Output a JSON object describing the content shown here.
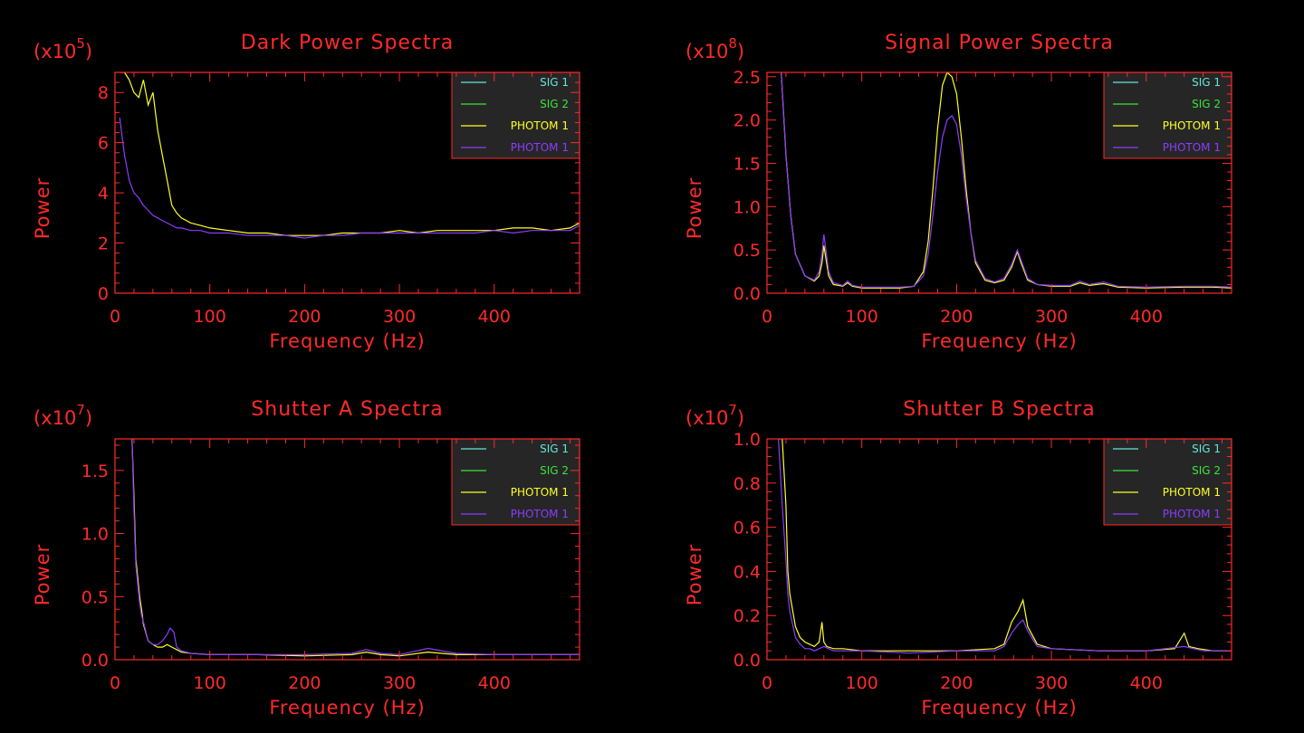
{
  "colors": {
    "axis": "#ff2a2a",
    "legend_bg": "#262626",
    "sig1": "#66e6d8",
    "sig2": "#39e639",
    "photom1_yellow": "#ffff26",
    "photom1_purple": "#8c3cff"
  },
  "chart_data": [
    {
      "type": "line",
      "title": "Dark Power Spectra",
      "scale_prefix": "(x10",
      "scale_exp": "5",
      "scale_suffix": ")",
      "xlabel": "Frequency (Hz)",
      "ylabel": "Power",
      "xlim": [
        0,
        490
      ],
      "ylim": [
        0,
        8.8
      ],
      "xticks": [
        0,
        100,
        200,
        300,
        400
      ],
      "xtick_labels": [
        "0",
        "100",
        "200",
        "300",
        "400"
      ],
      "yticks": [
        0,
        2,
        4,
        6,
        8
      ],
      "ytick_labels": [
        "0",
        "2",
        "4",
        "6",
        "8"
      ],
      "legend": [
        "SIG 1",
        "SIG 2",
        "PHOTOM 1",
        "PHOTOM 1"
      ],
      "legend_placement": "top-right",
      "series": [
        {
          "name": "PHOTOM 1",
          "color": "photom1_yellow",
          "x": [
            5,
            10,
            15,
            20,
            25,
            30,
            35,
            40,
            45,
            50,
            55,
            60,
            65,
            70,
            80,
            90,
            100,
            120,
            140,
            160,
            180,
            200,
            220,
            240,
            260,
            280,
            300,
            320,
            340,
            360,
            380,
            400,
            420,
            440,
            460,
            480,
            490
          ],
          "y": [
            8.8,
            8.8,
            8.5,
            8.0,
            7.8,
            8.5,
            7.5,
            8.0,
            6.5,
            5.5,
            4.5,
            3.5,
            3.2,
            3.0,
            2.8,
            2.7,
            2.6,
            2.5,
            2.4,
            2.4,
            2.3,
            2.3,
            2.3,
            2.4,
            2.4,
            2.4,
            2.5,
            2.4,
            2.5,
            2.5,
            2.5,
            2.5,
            2.6,
            2.6,
            2.5,
            2.6,
            2.8
          ]
        },
        {
          "name": "PHOTOM 1",
          "color": "photom1_purple",
          "x": [
            5,
            10,
            15,
            20,
            25,
            30,
            35,
            40,
            45,
            50,
            55,
            60,
            65,
            70,
            80,
            90,
            100,
            120,
            140,
            160,
            180,
            200,
            220,
            240,
            260,
            280,
            300,
            320,
            340,
            360,
            380,
            400,
            420,
            440,
            460,
            480,
            490
          ],
          "y": [
            7.0,
            5.5,
            4.5,
            4.0,
            3.8,
            3.5,
            3.3,
            3.1,
            3.0,
            2.9,
            2.8,
            2.7,
            2.6,
            2.6,
            2.5,
            2.5,
            2.4,
            2.4,
            2.3,
            2.3,
            2.3,
            2.2,
            2.3,
            2.3,
            2.4,
            2.4,
            2.4,
            2.4,
            2.4,
            2.4,
            2.4,
            2.5,
            2.4,
            2.5,
            2.5,
            2.5,
            2.7
          ]
        }
      ]
    },
    {
      "type": "line",
      "title": "Signal Power Spectra",
      "scale_prefix": "(x10",
      "scale_exp": "8",
      "scale_suffix": ")",
      "xlabel": "Frequency (Hz)",
      "ylabel": "Power",
      "xlim": [
        0,
        490
      ],
      "ylim": [
        0,
        2.55
      ],
      "xticks": [
        0,
        100,
        200,
        300,
        400
      ],
      "xtick_labels": [
        "0",
        "100",
        "200",
        "300",
        "400"
      ],
      "yticks": [
        0,
        0.5,
        1.0,
        1.5,
        2.0,
        2.5
      ],
      "ytick_labels": [
        "0.0",
        "0.5",
        "1.0",
        "1.5",
        "2.0",
        "2.5"
      ],
      "legend": [
        "SIG 1",
        "SIG 2",
        "PHOTOM 1",
        "PHOTOM 1"
      ],
      "legend_placement": "top-right",
      "series": [
        {
          "name": "PHOTOM 1",
          "color": "photom1_yellow",
          "x": [
            15,
            20,
            25,
            30,
            40,
            50,
            55,
            58,
            60,
            65,
            70,
            80,
            85,
            90,
            100,
            120,
            140,
            155,
            165,
            170,
            175,
            180,
            185,
            190,
            195,
            200,
            205,
            210,
            215,
            220,
            230,
            240,
            250,
            258,
            264,
            268,
            275,
            285,
            300,
            320,
            330,
            340,
            355,
            370,
            400,
            440,
            470,
            490
          ],
          "y": [
            2.55,
            1.6,
            0.9,
            0.45,
            0.2,
            0.14,
            0.2,
            0.35,
            0.55,
            0.2,
            0.1,
            0.08,
            0.12,
            0.08,
            0.06,
            0.06,
            0.06,
            0.08,
            0.25,
            0.6,
            1.2,
            1.9,
            2.4,
            2.55,
            2.5,
            2.3,
            1.8,
            1.2,
            0.7,
            0.35,
            0.15,
            0.12,
            0.15,
            0.3,
            0.48,
            0.35,
            0.15,
            0.1,
            0.08,
            0.08,
            0.12,
            0.09,
            0.11,
            0.07,
            0.06,
            0.07,
            0.07,
            0.06
          ]
        },
        {
          "name": "PHOTOM 1",
          "color": "photom1_purple",
          "x": [
            15,
            20,
            25,
            30,
            40,
            50,
            55,
            58,
            60,
            65,
            70,
            80,
            85,
            90,
            100,
            120,
            140,
            155,
            165,
            170,
            175,
            180,
            185,
            190,
            195,
            200,
            205,
            210,
            215,
            220,
            230,
            240,
            250,
            258,
            264,
            268,
            275,
            285,
            300,
            320,
            330,
            340,
            355,
            370,
            400,
            440,
            470,
            490
          ],
          "y": [
            2.55,
            1.6,
            0.9,
            0.45,
            0.2,
            0.15,
            0.25,
            0.45,
            0.68,
            0.25,
            0.12,
            0.09,
            0.14,
            0.09,
            0.07,
            0.07,
            0.07,
            0.08,
            0.2,
            0.45,
            0.9,
            1.4,
            1.8,
            2.0,
            2.05,
            1.95,
            1.6,
            1.1,
            0.7,
            0.38,
            0.17,
            0.13,
            0.17,
            0.33,
            0.5,
            0.38,
            0.17,
            0.1,
            0.09,
            0.09,
            0.14,
            0.1,
            0.13,
            0.08,
            0.07,
            0.08,
            0.08,
            0.07
          ]
        }
      ]
    },
    {
      "type": "line",
      "title": "Shutter A Spectra",
      "scale_prefix": "(x10",
      "scale_exp": "7",
      "scale_suffix": ")",
      "xlabel": "Frequency (Hz)",
      "ylabel": "Power",
      "xlim": [
        0,
        490
      ],
      "ylim": [
        0,
        1.75
      ],
      "xticks": [
        0,
        100,
        200,
        300,
        400
      ],
      "xtick_labels": [
        "0",
        "100",
        "200",
        "300",
        "400"
      ],
      "yticks": [
        0,
        0.5,
        1.0,
        1.5
      ],
      "ytick_labels": [
        "0.0",
        "0.5",
        "1.0",
        "1.5"
      ],
      "legend": [
        "SIG 1",
        "SIG 2",
        "PHOTOM 1",
        "PHOTOM 1"
      ],
      "legend_placement": "top-right",
      "series": [
        {
          "name": "PHOTOM 1",
          "color": "photom1_yellow",
          "x": [
            18,
            20,
            22,
            24,
            26,
            28,
            30,
            35,
            40,
            45,
            50,
            55,
            60,
            65,
            70,
            80,
            100,
            150,
            200,
            250,
            265,
            280,
            300,
            330,
            360,
            400,
            450,
            490
          ],
          "y": [
            1.75,
            1.3,
            0.8,
            0.65,
            0.5,
            0.4,
            0.28,
            0.15,
            0.12,
            0.1,
            0.1,
            0.12,
            0.1,
            0.08,
            0.06,
            0.05,
            0.04,
            0.04,
            0.03,
            0.04,
            0.06,
            0.04,
            0.03,
            0.06,
            0.04,
            0.04,
            0.04,
            0.04
          ]
        },
        {
          "name": "PHOTOM 1",
          "color": "photom1_purple",
          "x": [
            18,
            20,
            22,
            24,
            26,
            28,
            30,
            35,
            40,
            45,
            50,
            55,
            58,
            62,
            65,
            70,
            80,
            100,
            150,
            200,
            250,
            265,
            280,
            300,
            330,
            360,
            400,
            450,
            490
          ],
          "y": [
            1.75,
            1.2,
            0.75,
            0.6,
            0.45,
            0.35,
            0.3,
            0.15,
            0.12,
            0.12,
            0.15,
            0.2,
            0.25,
            0.22,
            0.1,
            0.07,
            0.05,
            0.04,
            0.04,
            0.04,
            0.05,
            0.08,
            0.05,
            0.04,
            0.09,
            0.05,
            0.04,
            0.04,
            0.04
          ]
        }
      ]
    },
    {
      "type": "line",
      "title": "Shutter B Spectra",
      "scale_prefix": "(x10",
      "scale_exp": "7",
      "scale_suffix": ")",
      "xlabel": "Frequency (Hz)",
      "ylabel": "Power",
      "xlim": [
        0,
        490
      ],
      "ylim": [
        0,
        1.0
      ],
      "xticks": [
        0,
        100,
        200,
        300,
        400
      ],
      "xtick_labels": [
        "0",
        "100",
        "200",
        "300",
        "400"
      ],
      "yticks": [
        0,
        0.2,
        0.4,
        0.6,
        0.8,
        1.0
      ],
      "ytick_labels": [
        "0.0",
        "0.2",
        "0.4",
        "0.6",
        "0.8",
        "1.0"
      ],
      "legend": [
        "SIG 1",
        "SIG 2",
        "PHOTOM 1",
        "PHOTOM 1"
      ],
      "legend_placement": "top-right",
      "series": [
        {
          "name": "PHOTOM 1",
          "color": "photom1_yellow",
          "x": [
            12,
            16,
            20,
            22,
            24,
            26,
            28,
            30,
            35,
            40,
            45,
            50,
            55,
            58,
            60,
            63,
            70,
            80,
            100,
            150,
            200,
            240,
            250,
            258,
            265,
            270,
            275,
            285,
            300,
            350,
            400,
            430,
            440,
            445,
            455,
            470,
            490
          ],
          "y": [
            1.0,
            1.0,
            0.7,
            0.4,
            0.3,
            0.25,
            0.2,
            0.15,
            0.1,
            0.08,
            0.07,
            0.06,
            0.08,
            0.17,
            0.08,
            0.06,
            0.05,
            0.05,
            0.04,
            0.04,
            0.04,
            0.05,
            0.07,
            0.17,
            0.22,
            0.27,
            0.15,
            0.07,
            0.05,
            0.04,
            0.04,
            0.05,
            0.12,
            0.06,
            0.05,
            0.04,
            0.04
          ]
        },
        {
          "name": "PHOTOM 1",
          "color": "photom1_purple",
          "x": [
            12,
            16,
            20,
            22,
            24,
            26,
            28,
            30,
            35,
            40,
            45,
            50,
            55,
            60,
            70,
            80,
            100,
            150,
            200,
            240,
            250,
            258,
            265,
            270,
            275,
            285,
            300,
            350,
            400,
            440,
            460,
            490
          ],
          "y": [
            1.0,
            0.7,
            0.45,
            0.3,
            0.22,
            0.18,
            0.14,
            0.1,
            0.07,
            0.05,
            0.05,
            0.04,
            0.05,
            0.06,
            0.04,
            0.04,
            0.04,
            0.03,
            0.04,
            0.04,
            0.06,
            0.12,
            0.16,
            0.18,
            0.13,
            0.06,
            0.05,
            0.04,
            0.04,
            0.06,
            0.04,
            0.04
          ]
        }
      ]
    }
  ]
}
